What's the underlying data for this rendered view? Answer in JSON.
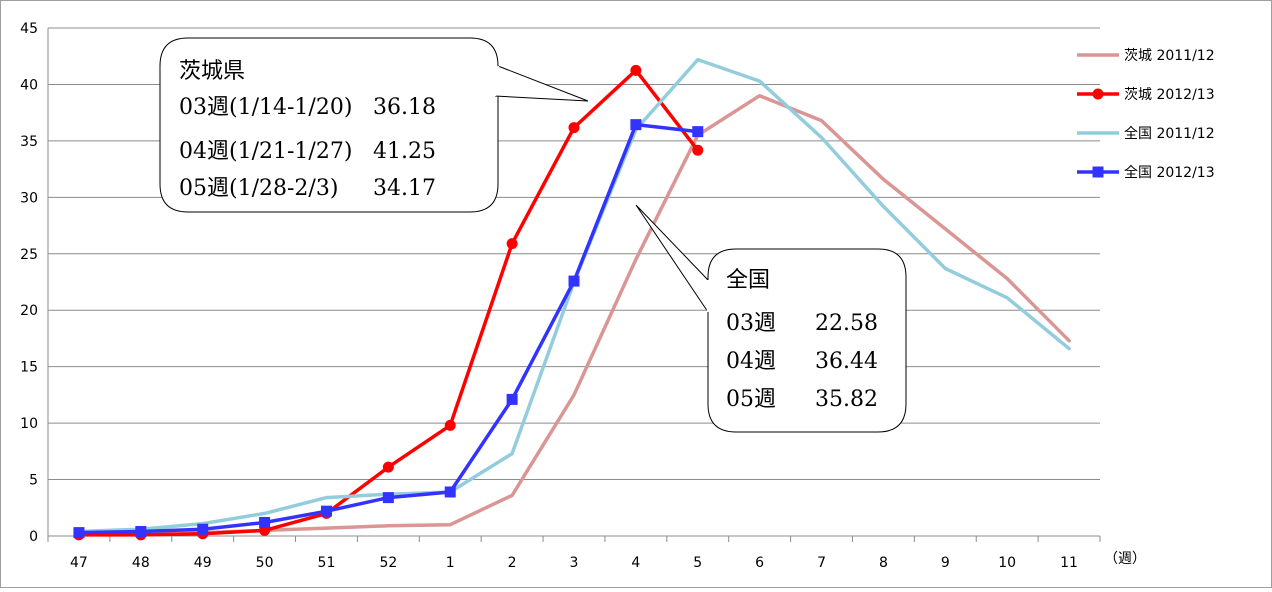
{
  "chart_data": {
    "type": "line",
    "title": "",
    "xlabel": "（週）",
    "ylabel": "",
    "categories": [
      "47",
      "48",
      "49",
      "50",
      "51",
      "52",
      "1",
      "2",
      "3",
      "4",
      "5",
      "6",
      "7",
      "8",
      "9",
      "10",
      "11"
    ],
    "ylim": [
      0,
      45
    ],
    "yticks": [
      0,
      5,
      10,
      15,
      20,
      25,
      30,
      35,
      40,
      45
    ],
    "grid": true,
    "legend_position": "right",
    "series": [
      {
        "name": "茨城 2011/12",
        "color": "#d99694",
        "marker": "none",
        "values": [
          0.2,
          0.2,
          0.3,
          0.5,
          0.7,
          0.9,
          1.0,
          3.6,
          12.5,
          24.5,
          35.5,
          39.0,
          36.8,
          31.6,
          27.2,
          22.8,
          17.3
        ]
      },
      {
        "name": "茨城 2012/13",
        "color": "#ff0000",
        "marker": "circle",
        "values": [
          0.1,
          0.1,
          0.2,
          0.5,
          2.0,
          6.1,
          9.8,
          25.9,
          36.18,
          41.25,
          34.17,
          null,
          null,
          null,
          null,
          null,
          null
        ]
      },
      {
        "name": "全国 2011/12",
        "color": "#93cddd",
        "marker": "none",
        "values": [
          0.4,
          0.6,
          1.1,
          2.0,
          3.4,
          3.7,
          3.9,
          7.3,
          22.5,
          36.0,
          42.2,
          40.3,
          35.3,
          29.2,
          23.7,
          21.1,
          16.6
        ]
      },
      {
        "name": "全国 2012/13",
        "color": "#3333ff",
        "marker": "square",
        "values": [
          0.3,
          0.4,
          0.6,
          1.2,
          2.2,
          3.4,
          3.9,
          12.1,
          22.58,
          36.44,
          35.82,
          null,
          null,
          null,
          null,
          null,
          null
        ]
      }
    ],
    "annotations": [
      {
        "id": "ibaraki",
        "title": "茨城県",
        "lines": [
          {
            "label": "03週(1/14-1/20)",
            "value": "36.18"
          },
          {
            "label": "04週(1/21-1/27)",
            "value": "41.25"
          },
          {
            "label": "05週(1/28-2/3)",
            "value": "34.17"
          }
        ]
      },
      {
        "id": "national",
        "title": "全国",
        "lines": [
          {
            "label": "03週",
            "value": "22.58"
          },
          {
            "label": "04週",
            "value": "36.44"
          },
          {
            "label": "05週",
            "value": "35.82"
          }
        ]
      }
    ]
  }
}
